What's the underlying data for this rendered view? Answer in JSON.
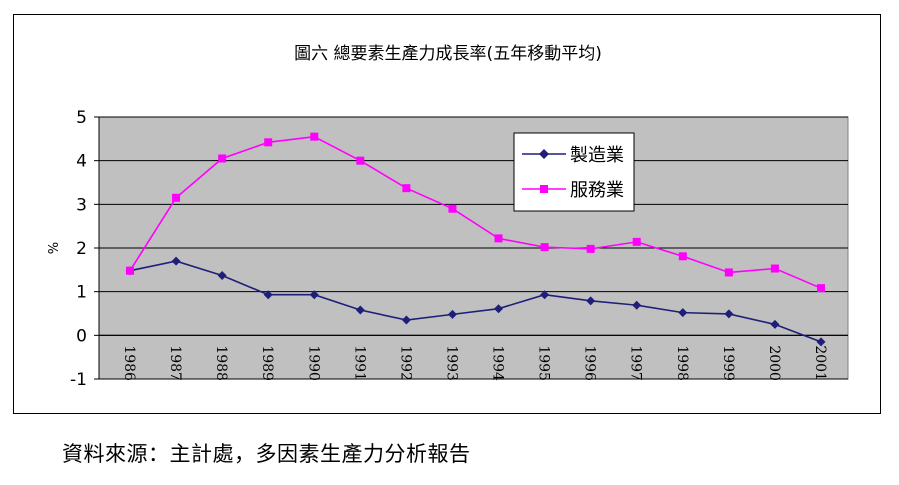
{
  "chart_data": {
    "type": "line",
    "title": "圖六 總要素生產力成長率(五年移動平均)",
    "xlabel": "",
    "ylabel": "%",
    "categories": [
      "1986",
      "1987",
      "1988",
      "1989",
      "1990",
      "1991",
      "1992",
      "1993",
      "1994",
      "1995",
      "1996",
      "1997",
      "1998",
      "1999",
      "2000",
      "2001"
    ],
    "ylim": [
      -1,
      5
    ],
    "yticks": [
      "5",
      "4",
      "3",
      "2",
      "1",
      "0",
      "-1"
    ],
    "grid": true,
    "legend_position": "upper-right",
    "series": [
      {
        "name": "製造業",
        "color": "#1f1f7a",
        "marker": "diamond",
        "values": [
          1.48,
          1.7,
          1.37,
          0.93,
          0.93,
          0.58,
          0.35,
          0.48,
          0.61,
          0.93,
          0.79,
          0.69,
          0.52,
          0.49,
          0.25,
          -0.15
        ]
      },
      {
        "name": "服務業",
        "color": "#ff00ff",
        "marker": "square",
        "values": [
          1.48,
          3.15,
          4.05,
          4.42,
          4.55,
          4.0,
          3.37,
          2.9,
          2.22,
          2.02,
          1.98,
          2.14,
          1.81,
          1.44,
          1.53,
          1.08
        ]
      }
    ],
    "plot_background": "#c0c0c0"
  },
  "source": "資料來源：主計處，多因素生產力分析報告"
}
